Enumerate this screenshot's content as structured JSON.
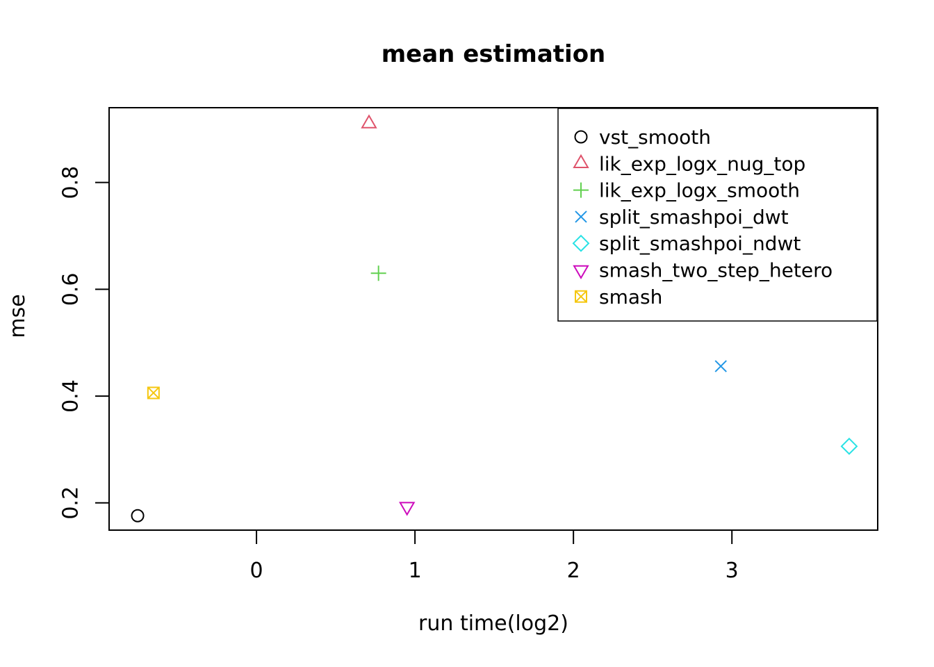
{
  "chart_data": {
    "type": "scatter",
    "title": "mean estimation",
    "xlabel": "run time(log2)",
    "ylabel": "mse",
    "xlim": [
      -0.93,
      3.92
    ],
    "ylim": [
      0.149,
      0.94
    ],
    "x_ticks": [
      0,
      1,
      2,
      3
    ],
    "y_ticks": [
      0.2,
      0.4,
      0.6,
      0.8
    ],
    "grid": false,
    "legend_position": "top-right",
    "axis_color": "#000000",
    "background_color": "#ffffff",
    "series": [
      {
        "name": "vst_smooth",
        "marker": "circle",
        "color": "#000000",
        "x": -0.75,
        "y": 0.176
      },
      {
        "name": "lik_exp_logx_nug_top",
        "marker": "triangle-up",
        "color": "#DF536B",
        "x": 0.71,
        "y": 0.91
      },
      {
        "name": "lik_exp_logx_smooth",
        "marker": "plus",
        "color": "#61D04F",
        "x": 0.77,
        "y": 0.63
      },
      {
        "name": "split_smashpoi_dwt",
        "marker": "x",
        "color": "#2297E6",
        "x": 2.93,
        "y": 0.456
      },
      {
        "name": "split_smashpoi_ndwt",
        "marker": "diamond",
        "color": "#28E2E5",
        "x": 3.74,
        "y": 0.306
      },
      {
        "name": "smash_two_step_hetero",
        "marker": "triangle-down",
        "color": "#CD0BBC",
        "x": 0.95,
        "y": 0.193
      },
      {
        "name": "smash",
        "marker": "square-x",
        "color": "#F5C710",
        "x": -0.65,
        "y": 0.406
      }
    ]
  }
}
